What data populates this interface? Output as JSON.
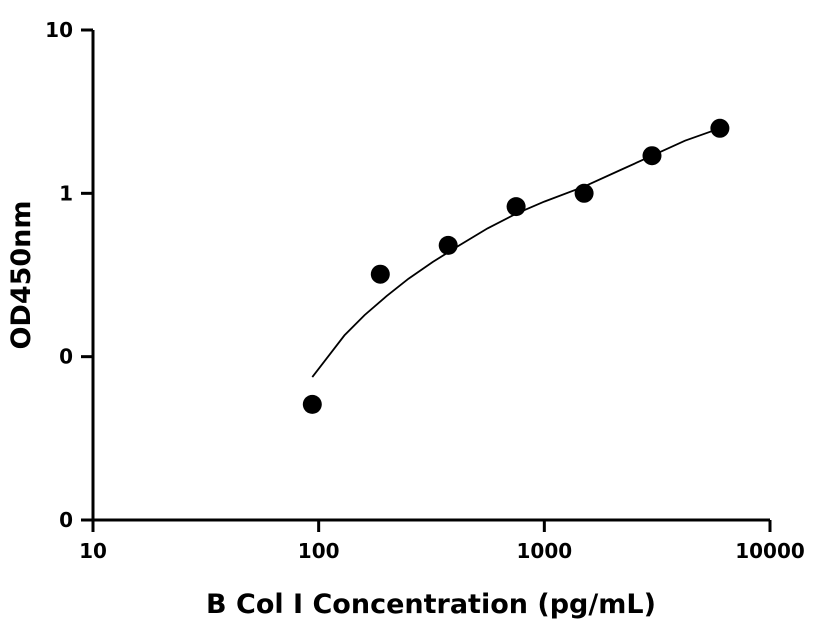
{
  "chart_data": {
    "type": "scatter",
    "title": "",
    "xlabel": "B Col I Concentration (pg/mL)",
    "ylabel": "OD450nm",
    "x_scale": "log",
    "y_scale": "log",
    "xlim": [
      10,
      10000
    ],
    "ylim": [
      0.01,
      10
    ],
    "x_ticks": [
      {
        "value": 10,
        "label": "10"
      },
      {
        "value": 100,
        "label": "100"
      },
      {
        "value": 1000,
        "label": "1000"
      },
      {
        "value": 10000,
        "label": "10000"
      }
    ],
    "y_ticks": [
      {
        "value": 0.01,
        "label": "0"
      },
      {
        "value": 0.1,
        "label": "0"
      },
      {
        "value": 1,
        "label": "1"
      },
      {
        "value": 10,
        "label": "10"
      }
    ],
    "grid": false,
    "legend": false,
    "series": [
      {
        "points": [
          {
            "x": 93.75,
            "y": 0.051
          },
          {
            "x": 187.5,
            "y": 0.32
          },
          {
            "x": 375,
            "y": 0.48
          },
          {
            "x": 750,
            "y": 0.83
          },
          {
            "x": 1500,
            "y": 1.0
          },
          {
            "x": 3000,
            "y": 1.7
          },
          {
            "x": 6000,
            "y": 2.5
          }
        ]
      }
    ],
    "fit_curve": [
      {
        "x": 93.75,
        "y": 0.075
      },
      {
        "x": 110,
        "y": 0.1
      },
      {
        "x": 130,
        "y": 0.135
      },
      {
        "x": 160,
        "y": 0.18
      },
      {
        "x": 200,
        "y": 0.235
      },
      {
        "x": 250,
        "y": 0.3
      },
      {
        "x": 320,
        "y": 0.38
      },
      {
        "x": 420,
        "y": 0.48
      },
      {
        "x": 560,
        "y": 0.61
      },
      {
        "x": 750,
        "y": 0.75
      },
      {
        "x": 1000,
        "y": 0.89
      },
      {
        "x": 1500,
        "y": 1.1
      },
      {
        "x": 2200,
        "y": 1.4
      },
      {
        "x": 3000,
        "y": 1.7
      },
      {
        "x": 4200,
        "y": 2.1
      },
      {
        "x": 6000,
        "y": 2.5
      }
    ],
    "colors": {
      "points": "#000000",
      "curve": "#000000",
      "axes": "#000000"
    }
  }
}
